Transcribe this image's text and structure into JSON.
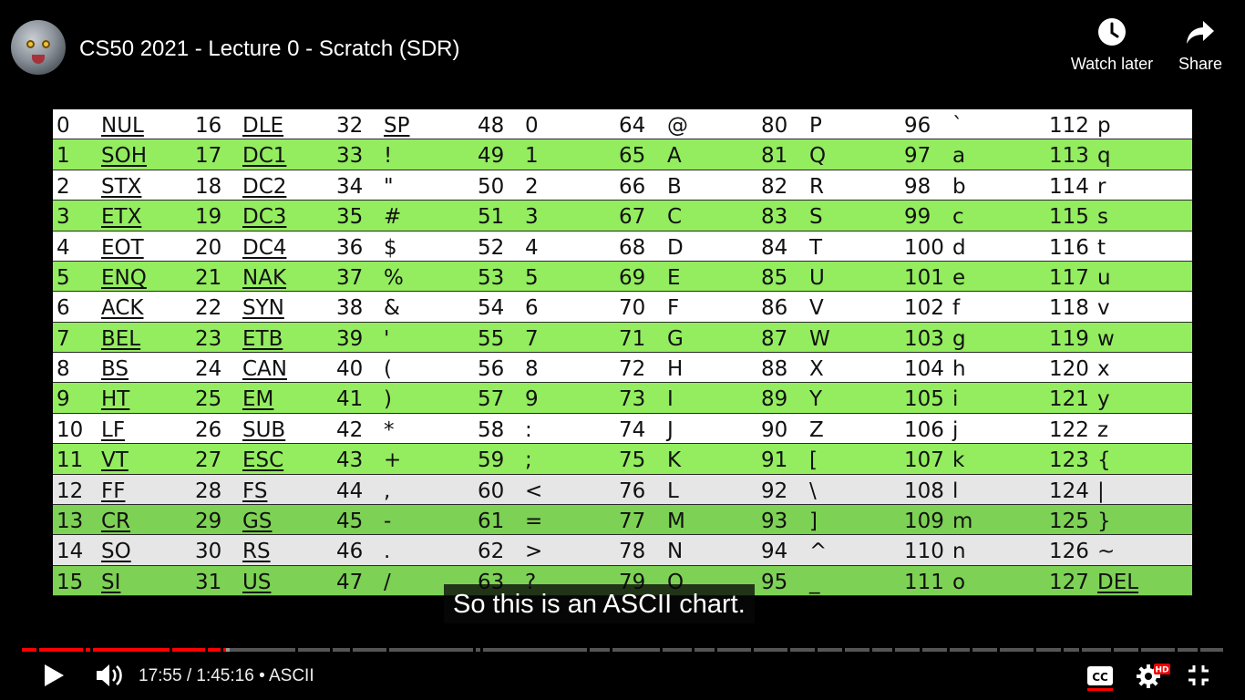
{
  "video": {
    "title": "CS50 2021 - Lecture 0 - Scratch (SDR)",
    "watch_later_label": "Watch later",
    "share_label": "Share",
    "caption": "So this is an ASCII chart.",
    "time_current": "17:55",
    "time_total": "1:45:16",
    "chapter": "ASCII",
    "hd_badge": "HD",
    "progress_played_percent": 17.0,
    "progress_buffered_percent": 17.3,
    "accent_color": "#ff0000"
  },
  "ascii_table": {
    "rows": [
      [
        [
          "0",
          "NUL"
        ],
        [
          "16",
          "DLE"
        ],
        [
          "32",
          "SP"
        ],
        [
          "48",
          "0"
        ],
        [
          "64",
          "@"
        ],
        [
          "80",
          "P"
        ],
        [
          "96",
          "`"
        ],
        [
          "112",
          "p"
        ]
      ],
      [
        [
          "1",
          "SOH"
        ],
        [
          "17",
          "DC1"
        ],
        [
          "33",
          "!"
        ],
        [
          "49",
          "1"
        ],
        [
          "65",
          "A"
        ],
        [
          "81",
          "Q"
        ],
        [
          "97",
          "a"
        ],
        [
          "113",
          "q"
        ]
      ],
      [
        [
          "2",
          "STX"
        ],
        [
          "18",
          "DC2"
        ],
        [
          "34",
          "\""
        ],
        [
          "50",
          "2"
        ],
        [
          "66",
          "B"
        ],
        [
          "82",
          "R"
        ],
        [
          "98",
          "b"
        ],
        [
          "114",
          "r"
        ]
      ],
      [
        [
          "3",
          "ETX"
        ],
        [
          "19",
          "DC3"
        ],
        [
          "35",
          "#"
        ],
        [
          "51",
          "3"
        ],
        [
          "67",
          "C"
        ],
        [
          "83",
          "S"
        ],
        [
          "99",
          "c"
        ],
        [
          "115",
          "s"
        ]
      ],
      [
        [
          "4",
          "EOT"
        ],
        [
          "20",
          "DC4"
        ],
        [
          "36",
          "$"
        ],
        [
          "52",
          "4"
        ],
        [
          "68",
          "D"
        ],
        [
          "84",
          "T"
        ],
        [
          "100",
          "d"
        ],
        [
          "116",
          "t"
        ]
      ],
      [
        [
          "5",
          "ENQ"
        ],
        [
          "21",
          "NAK"
        ],
        [
          "37",
          "%"
        ],
        [
          "53",
          "5"
        ],
        [
          "69",
          "E"
        ],
        [
          "85",
          "U"
        ],
        [
          "101",
          "e"
        ],
        [
          "117",
          "u"
        ]
      ],
      [
        [
          "6",
          "ACK"
        ],
        [
          "22",
          "SYN"
        ],
        [
          "38",
          "&"
        ],
        [
          "54",
          "6"
        ],
        [
          "70",
          "F"
        ],
        [
          "86",
          "V"
        ],
        [
          "102",
          "f"
        ],
        [
          "118",
          "v"
        ]
      ],
      [
        [
          "7",
          "BEL"
        ],
        [
          "23",
          "ETB"
        ],
        [
          "39",
          "'"
        ],
        [
          "55",
          "7"
        ],
        [
          "71",
          "G"
        ],
        [
          "87",
          "W"
        ],
        [
          "103",
          "g"
        ],
        [
          "119",
          "w"
        ]
      ],
      [
        [
          "8",
          "BS"
        ],
        [
          "24",
          "CAN"
        ],
        [
          "40",
          "("
        ],
        [
          "56",
          "8"
        ],
        [
          "72",
          "H"
        ],
        [
          "88",
          "X"
        ],
        [
          "104",
          "h"
        ],
        [
          "120",
          "x"
        ]
      ],
      [
        [
          "9",
          "HT"
        ],
        [
          "25",
          "EM"
        ],
        [
          "41",
          ")"
        ],
        [
          "57",
          "9"
        ],
        [
          "73",
          "I"
        ],
        [
          "89",
          "Y"
        ],
        [
          "105",
          "i"
        ],
        [
          "121",
          "y"
        ]
      ],
      [
        [
          "10",
          "LF"
        ],
        [
          "26",
          "SUB"
        ],
        [
          "42",
          "*"
        ],
        [
          "58",
          ":"
        ],
        [
          "74",
          "J"
        ],
        [
          "90",
          "Z"
        ],
        [
          "106",
          "j"
        ],
        [
          "122",
          "z"
        ]
      ],
      [
        [
          "11",
          "VT"
        ],
        [
          "27",
          "ESC"
        ],
        [
          "43",
          "+"
        ],
        [
          "59",
          ";"
        ],
        [
          "75",
          "K"
        ],
        [
          "91",
          "["
        ],
        [
          "107",
          "k"
        ],
        [
          "123",
          "{"
        ]
      ],
      [
        [
          "12",
          "FF"
        ],
        [
          "28",
          "FS"
        ],
        [
          "44",
          ","
        ],
        [
          "60",
          "<"
        ],
        [
          "76",
          "L"
        ],
        [
          "92",
          "\\"
        ],
        [
          "108",
          "l"
        ],
        [
          "124",
          "|"
        ]
      ],
      [
        [
          "13",
          "CR"
        ],
        [
          "29",
          "GS"
        ],
        [
          "45",
          "-"
        ],
        [
          "61",
          "="
        ],
        [
          "77",
          "M"
        ],
        [
          "93",
          "]"
        ],
        [
          "109",
          "m"
        ],
        [
          "125",
          "}"
        ]
      ],
      [
        [
          "14",
          "SO"
        ],
        [
          "30",
          "RS"
        ],
        [
          "46",
          "."
        ],
        [
          "62",
          ">"
        ],
        [
          "78",
          "N"
        ],
        [
          "94",
          "^"
        ],
        [
          "110",
          "n"
        ],
        [
          "126",
          "~"
        ]
      ],
      [
        [
          "15",
          "SI"
        ],
        [
          "31",
          "US"
        ],
        [
          "47",
          "/"
        ],
        [
          "63",
          "?"
        ],
        [
          "79",
          "O"
        ],
        [
          "95",
          "_"
        ],
        [
          "111",
          "o"
        ],
        [
          "127",
          "DEL"
        ]
      ]
    ],
    "underlined_columns": [
      0,
      1
    ],
    "underlined_last_column_row": 15
  }
}
